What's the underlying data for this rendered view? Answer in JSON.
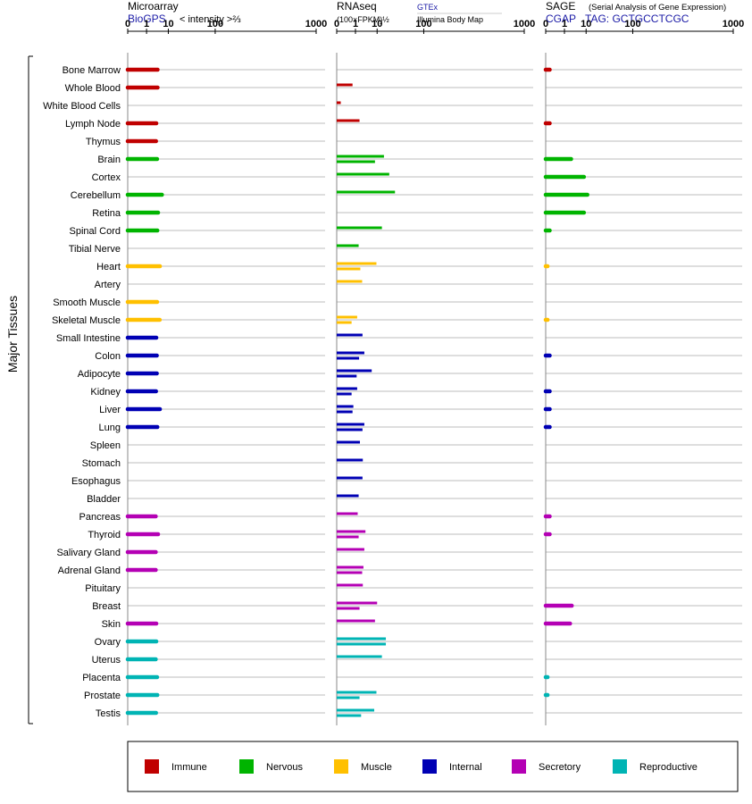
{
  "panels": {
    "microarray": {
      "title": "Microarray",
      "source": "BioGPS",
      "unit": "< intensity >⅔"
    },
    "rnaseq": {
      "title": "RNAseq",
      "unit": "(100×FPKM)½",
      "source_top": "GTEx",
      "source_bottom": "Illumina Body Map"
    },
    "sage": {
      "title": "SAGE",
      "subtitle": "(Serial Analysis of Gene Expression)",
      "source": "CGAP",
      "tag_label": "TAG: GCTGCCTCGC"
    }
  },
  "tissues_group_label": "Major Tissues",
  "legend": [
    {
      "name": "Immune",
      "color": "#c00000"
    },
    {
      "name": "Nervous",
      "color": "#00b400"
    },
    {
      "name": "Muscle",
      "color": "#ffc000"
    },
    {
      "name": "Internal",
      "color": "#0000b4"
    },
    {
      "name": "Secretory",
      "color": "#b400b4"
    },
    {
      "name": "Reproductive",
      "color": "#00b4b4"
    }
  ],
  "chart_data": {
    "type": "bar",
    "axis_ticks": [
      "0",
      "1",
      "10",
      "100",
      "1000"
    ],
    "axis_tick_values": [
      0,
      1,
      10,
      100,
      1000
    ],
    "scale": "power (value^(1/3))",
    "xlim": [
      0,
      1000
    ],
    "categories": [
      "Bone Marrow",
      "Whole Blood",
      "White Blood Cells",
      "Lymph Node",
      "Thymus",
      "Brain",
      "Cortex",
      "Cerebellum",
      "Retina",
      "Spinal Cord",
      "Tibial Nerve",
      "Heart",
      "Artery",
      "Smooth Muscle",
      "Skeletal Muscle",
      "Small Intestine",
      "Colon",
      "Adipocyte",
      "Kidney",
      "Liver",
      "Lung",
      "Spleen",
      "Stomach",
      "Esophagus",
      "Bladder",
      "Pancreas",
      "Thyroid",
      "Salivary Gland",
      "Adrenal Gland",
      "Pituitary",
      "Breast",
      "Skin",
      "Ovary",
      "Uterus",
      "Placenta",
      "Prostate",
      "Testis"
    ],
    "groups": [
      "Immune",
      "Immune",
      "Immune",
      "Immune",
      "Immune",
      "Nervous",
      "Nervous",
      "Nervous",
      "Nervous",
      "Nervous",
      "Nervous",
      "Muscle",
      "Muscle",
      "Muscle",
      "Muscle",
      "Internal",
      "Internal",
      "Internal",
      "Internal",
      "Internal",
      "Internal",
      "Internal",
      "Internal",
      "Internal",
      "Internal",
      "Secretory",
      "Secretory",
      "Secretory",
      "Secretory",
      "Secretory",
      "Secretory",
      "Secretory",
      "Reproductive",
      "Reproductive",
      "Reproductive",
      "Reproductive",
      "Reproductive"
    ],
    "series": [
      {
        "name": "Microarray BioGPS",
        "values": [
          4,
          4,
          null,
          3.5,
          3.4,
          3.8,
          null,
          6,
          4.2,
          3.9,
          null,
          5,
          null,
          3.8,
          4.9,
          3.5,
          3.7,
          3.7,
          3.4,
          5,
          3.9,
          null,
          null,
          null,
          null,
          3.3,
          4.2,
          3.3,
          3.3,
          null,
          null,
          3.5,
          3.5,
          3.3,
          3.8,
          3.9,
          3.4
        ]
      },
      {
        "name": "GTEx",
        "values": [
          null,
          0.6,
          0.01,
          null,
          null,
          16,
          null,
          null,
          null,
          14,
          1.6,
          9.5,
          2.5,
          null,
          1.3,
          2.6,
          3.2,
          6.5,
          1.3,
          0.7,
          3.2,
          1.9,
          2.7,
          2.6,
          1.6,
          1.4,
          3.6,
          3.2,
          2.9,
          2.7,
          10,
          8.5,
          18,
          14,
          null,
          9.5,
          8
        ]
      },
      {
        "name": "Illumina Body Map",
        "values": [
          null,
          null,
          null,
          1.8,
          null,
          8.5,
          22,
          30,
          null,
          null,
          null,
          2,
          null,
          null,
          0.5,
          null,
          1.7,
          1.2,
          0.5,
          0.6,
          2.6,
          null,
          null,
          null,
          null,
          null,
          1.6,
          null,
          2.5,
          null,
          1.8,
          null,
          18,
          null,
          null,
          1.8,
          2.2
        ]
      },
      {
        "name": "SAGE CGAP",
        "values": [
          0.01,
          null,
          null,
          0.01,
          null,
          2.5,
          8.5,
          11,
          8.5,
          0.01,
          null,
          0.001,
          null,
          null,
          0.001,
          null,
          0.01,
          null,
          0.01,
          0.01,
          0.01,
          null,
          null,
          null,
          null,
          0.01,
          0.01,
          null,
          null,
          null,
          2.7,
          2.2,
          null,
          null,
          0.001,
          0.001,
          null
        ]
      }
    ]
  }
}
